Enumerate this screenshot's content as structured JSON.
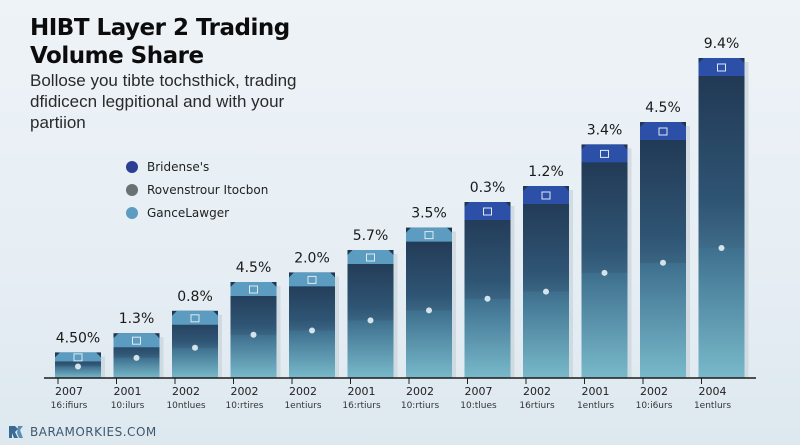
{
  "chart_data": {
    "type": "bar",
    "title": "HIBT Layer 2 Trading Volume Share",
    "subtitle": "Bollose you tibte tochsthick, trading dfidicecn legpitional and with your partiion",
    "xlabel": "",
    "ylabel": "",
    "grid": false,
    "legend_position": "left",
    "legend": [
      {
        "label": "Bridense's",
        "color": "#2d3f94"
      },
      {
        "label": "Rovenstrour Itocbon",
        "color": "#6b7173"
      },
      {
        "label": "GanceLawger",
        "color": "#5b9cc0"
      }
    ],
    "categories": [
      {
        "year": "2007",
        "sub": "16:ifiurs"
      },
      {
        "year": "2001",
        "sub": "10:ilurs"
      },
      {
        "year": "2002",
        "sub": "10ntlues"
      },
      {
        "year": "2002",
        "sub": "10:rtires"
      },
      {
        "year": "2002",
        "sub": "1entiurs"
      },
      {
        "year": "2001",
        "sub": "16:rtiurs"
      },
      {
        "year": "2002",
        "sub": "10:rtiurs"
      },
      {
        "year": "2007",
        "sub": "10:tlues"
      },
      {
        "year": "2002",
        "sub": "16rtiurs"
      },
      {
        "year": "2001",
        "sub": "1entlurs"
      },
      {
        "year": "2002",
        "sub": "10:i6urs"
      },
      {
        "year": "2004",
        "sub": "1entlurs"
      }
    ],
    "value_labels": [
      "4.50%",
      "1.3%",
      "0.8%",
      "4.5%",
      "2.0%",
      "5.7%",
      "3.5%",
      "0.3%",
      "1.2%",
      "3.4%",
      "4.5%",
      "9.4%"
    ],
    "relative_heights": [
      0.08,
      0.14,
      0.21,
      0.3,
      0.33,
      0.4,
      0.47,
      0.55,
      0.6,
      0.73,
      0.8,
      1.0
    ],
    "cap_colors": [
      "#5b9cc0",
      "#5b9cc0",
      "#5b9cc0",
      "#5b9cc0",
      "#5b9cc0",
      "#5b9cc0",
      "#5b9cc0",
      "#2c4fa8",
      "#2c4fa8",
      "#2c4fa8",
      "#2c4fa8",
      "#2c4fa8"
    ]
  },
  "footer": {
    "brand": "BARAMORKIES.COM"
  }
}
